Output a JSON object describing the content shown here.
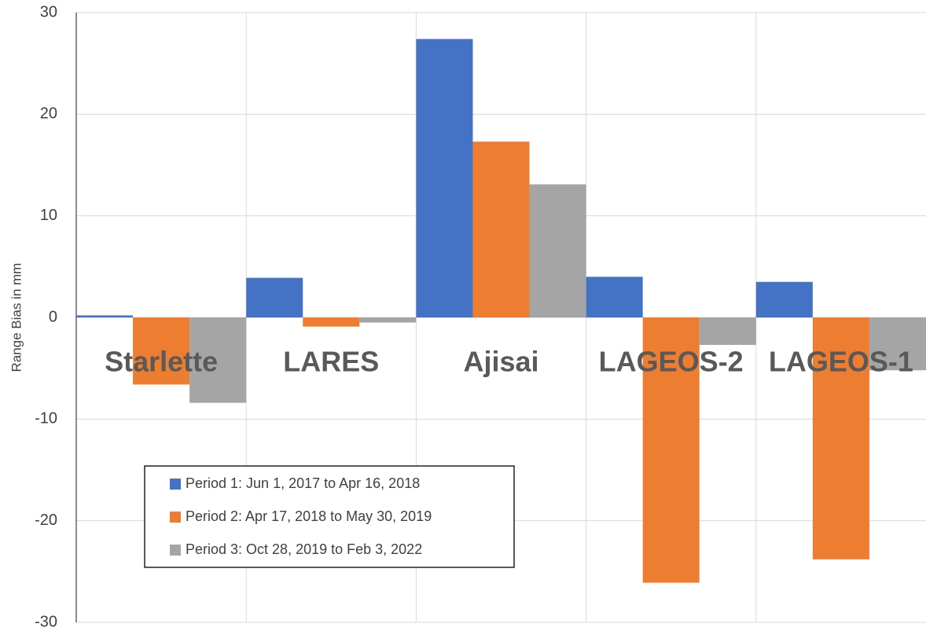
{
  "chart_data": {
    "type": "bar",
    "y_label": "Range Bias in mm",
    "categories": [
      "Starlette",
      "LARES",
      "Ajisai",
      "LAGEOS-2",
      "LAGEOS-1"
    ],
    "series": [
      {
        "name": "Period 1:  Jun 1, 2017 to Apr 16, 2018",
        "color": "#4472c4",
        "values": [
          0.2,
          3.9,
          27.4,
          4.0,
          3.5
        ]
      },
      {
        "name": "Period 2: Apr 17, 2018 to May 30, 2019",
        "color": "#ed7d31",
        "values": [
          -6.6,
          -0.9,
          17.3,
          -26.1,
          -23.8
        ]
      },
      {
        "name": "Period 3: Oct 28, 2019 to Feb 3, 2022",
        "color": "#a5a5a5",
        "values": [
          -8.4,
          -0.5,
          13.1,
          -2.7,
          -5.2
        ]
      }
    ],
    "ylim": [
      -30,
      30
    ],
    "yticks": [
      -30,
      -20,
      -10,
      0,
      10,
      20,
      30
    ],
    "grid": true
  }
}
